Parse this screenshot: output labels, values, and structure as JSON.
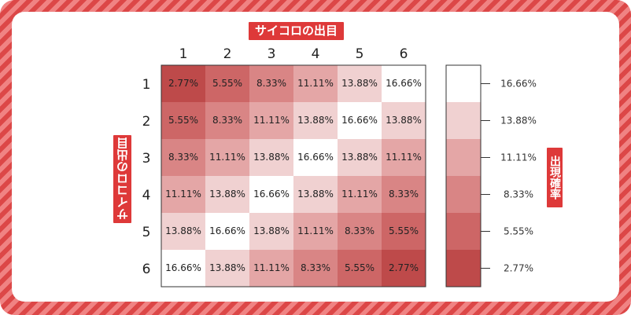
{
  "labels": {
    "top": "サイコロの出目",
    "left": "サイコロの出目",
    "right": "出現確率"
  },
  "colors": {
    "border_dark": "#dc4747",
    "border_light": "#f08383",
    "cell_border": "#333333",
    "scale": {
      "2.77%": "#be4a4a",
      "5.55%": "#cd6666",
      "8.33%": "#d98585",
      "11.11%": "#e4a6a6",
      "13.88%": "#f0d1d1",
      "16.66%": "#ffffff"
    }
  },
  "chart_data": {
    "type": "heatmap",
    "x_categories": [
      "1",
      "2",
      "3",
      "4",
      "5",
      "6"
    ],
    "y_categories": [
      "1",
      "2",
      "3",
      "4",
      "5",
      "6"
    ],
    "cells": [
      [
        "2.77%",
        "5.55%",
        "8.33%",
        "11.11%",
        "13.88%",
        "16.66%"
      ],
      [
        "5.55%",
        "8.33%",
        "11.11%",
        "13.88%",
        "16.66%",
        "13.88%"
      ],
      [
        "8.33%",
        "11.11%",
        "13.88%",
        "16.66%",
        "13.88%",
        "11.11%"
      ],
      [
        "11.11%",
        "13.88%",
        "16.66%",
        "13.88%",
        "11.11%",
        "8.33%"
      ],
      [
        "13.88%",
        "16.66%",
        "13.88%",
        "11.11%",
        "8.33%",
        "5.55%"
      ],
      [
        "16.66%",
        "13.88%",
        "11.11%",
        "8.33%",
        "5.55%",
        "2.77%"
      ]
    ],
    "legend": {
      "values_top_to_bottom": [
        "16.66%",
        "13.88%",
        "11.11%",
        "8.33%",
        "5.55%",
        "2.77%"
      ]
    }
  }
}
